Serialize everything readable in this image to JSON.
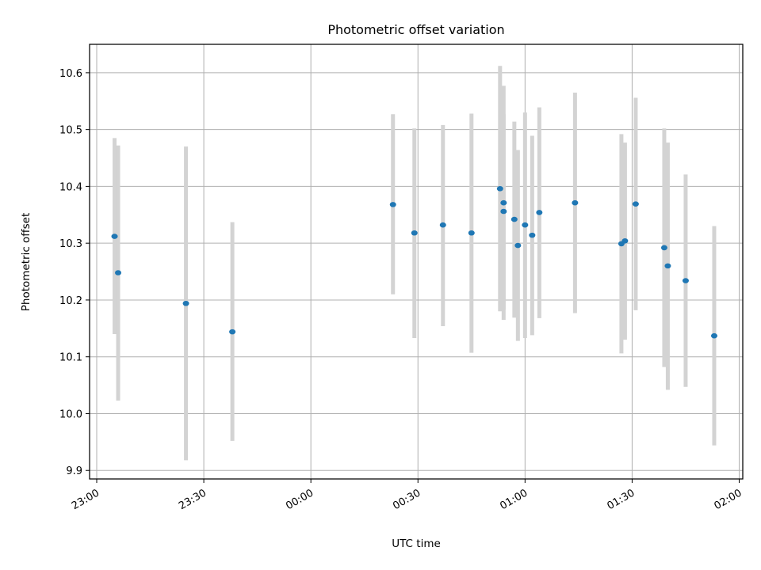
{
  "chart_data": {
    "type": "scatter",
    "title": "Photometric offset variation",
    "xlabel": "UTC time",
    "ylabel": "Photometric offset",
    "x_tick_labels": [
      "23:00",
      "23:30",
      "00:00",
      "00:30",
      "01:00",
      "01:30",
      "02:00"
    ],
    "y_tick_labels": [
      "9.9",
      "10.0",
      "10.1",
      "10.2",
      "10.3",
      "10.4",
      "10.5",
      "10.6"
    ],
    "xlim": [
      "22:58",
      "02:01"
    ],
    "ylim": [
      9.885,
      10.65
    ],
    "grid": true,
    "colors": {
      "point": "#1f77b4",
      "errorbar": "#d3d3d3",
      "grid": "#b0b0b0"
    },
    "points": [
      {
        "x": "23:05",
        "y": 10.312,
        "ymin": 10.14,
        "ymax": 10.485
      },
      {
        "x": "23:06",
        "y": 10.248,
        "ymin": 10.023,
        "ymax": 10.472
      },
      {
        "x": "23:25",
        "y": 10.194,
        "ymin": 9.918,
        "ymax": 10.47
      },
      {
        "x": "23:38",
        "y": 10.144,
        "ymin": 9.952,
        "ymax": 10.337
      },
      {
        "x": "00:23",
        "y": 10.368,
        "ymin": 10.21,
        "ymax": 10.527
      },
      {
        "x": "00:29",
        "y": 10.318,
        "ymin": 10.133,
        "ymax": 10.502
      },
      {
        "x": "00:37",
        "y": 10.332,
        "ymin": 10.154,
        "ymax": 10.508
      },
      {
        "x": "00:45",
        "y": 10.318,
        "ymin": 10.107,
        "ymax": 10.528
      },
      {
        "x": "00:53",
        "y": 10.396,
        "ymin": 10.18,
        "ymax": 10.612
      },
      {
        "x": "00:54",
        "y": 10.371,
        "ymin": 10.165,
        "ymax": 10.577
      },
      {
        "x": "00:54",
        "y": 10.356,
        "ymin": 10.183,
        "ymax": 10.527
      },
      {
        "x": "00:57",
        "y": 10.342,
        "ymin": 10.169,
        "ymax": 10.514
      },
      {
        "x": "00:58",
        "y": 10.296,
        "ymin": 10.128,
        "ymax": 10.464
      },
      {
        "x": "01:00",
        "y": 10.332,
        "ymin": 10.133,
        "ymax": 10.53
      },
      {
        "x": "01:02",
        "y": 10.314,
        "ymin": 10.138,
        "ymax": 10.489
      },
      {
        "x": "01:04",
        "y": 10.354,
        "ymin": 10.168,
        "ymax": 10.539
      },
      {
        "x": "01:14",
        "y": 10.371,
        "ymin": 10.177,
        "ymax": 10.565
      },
      {
        "x": "01:27",
        "y": 10.299,
        "ymin": 10.106,
        "ymax": 10.492
      },
      {
        "x": "01:28",
        "y": 10.304,
        "ymin": 10.13,
        "ymax": 10.477
      },
      {
        "x": "01:31",
        "y": 10.369,
        "ymin": 10.182,
        "ymax": 10.556
      },
      {
        "x": "01:39",
        "y": 10.292,
        "ymin": 10.082,
        "ymax": 10.502
      },
      {
        "x": "01:40",
        "y": 10.26,
        "ymin": 10.042,
        "ymax": 10.477
      },
      {
        "x": "01:45",
        "y": 10.234,
        "ymin": 10.047,
        "ymax": 10.421
      },
      {
        "x": "01:53",
        "y": 10.137,
        "ymin": 9.944,
        "ymax": 10.33
      }
    ]
  }
}
